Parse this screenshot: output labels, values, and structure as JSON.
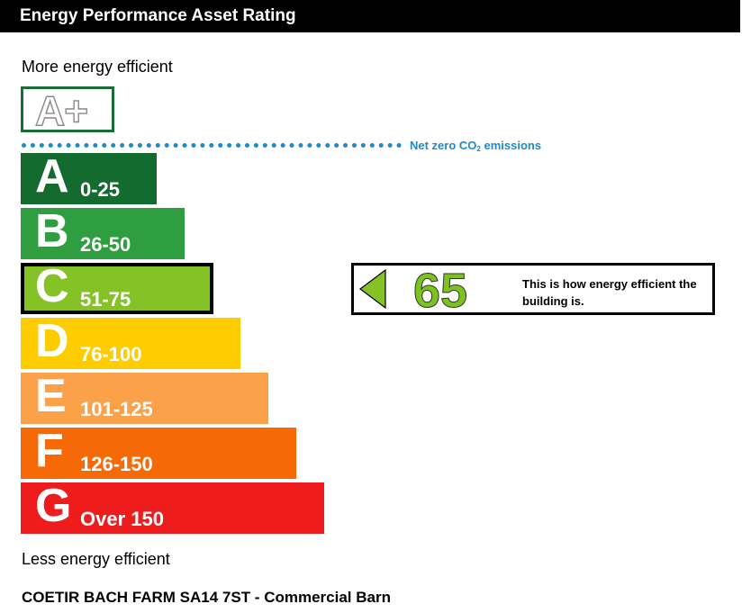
{
  "header": {
    "title": "Energy Performance Asset Rating"
  },
  "labels": {
    "more_efficient": "More energy efficient",
    "less_efficient": "Less energy efficient",
    "net_zero_prefix": "Net zero CO",
    "net_zero_sub": "2",
    "net_zero_suffix": " emissions"
  },
  "aplus": {
    "label": "A+",
    "border_color": "#1a6d34"
  },
  "chart_data": {
    "type": "bar",
    "categories": [
      "A",
      "B",
      "C",
      "D",
      "E",
      "F",
      "G"
    ],
    "ranges": [
      "0-25",
      "26-50",
      "51-75",
      "76-100",
      "101-125",
      "126-150",
      "Over 150"
    ],
    "colors": [
      "#146b30",
      "#2f9e41",
      "#84c225",
      "#ffcc00",
      "#fba14a",
      "#f56a06",
      "#ee1c1c"
    ],
    "current_band": "C",
    "current_score": 65
  },
  "indicator": {
    "score": "65",
    "description": "This is how energy efficient the building is.",
    "arrow_color": "#84c225"
  },
  "footer": {
    "text": "COETIR BACH FARM SA14 7ST - Commercial Barn"
  }
}
